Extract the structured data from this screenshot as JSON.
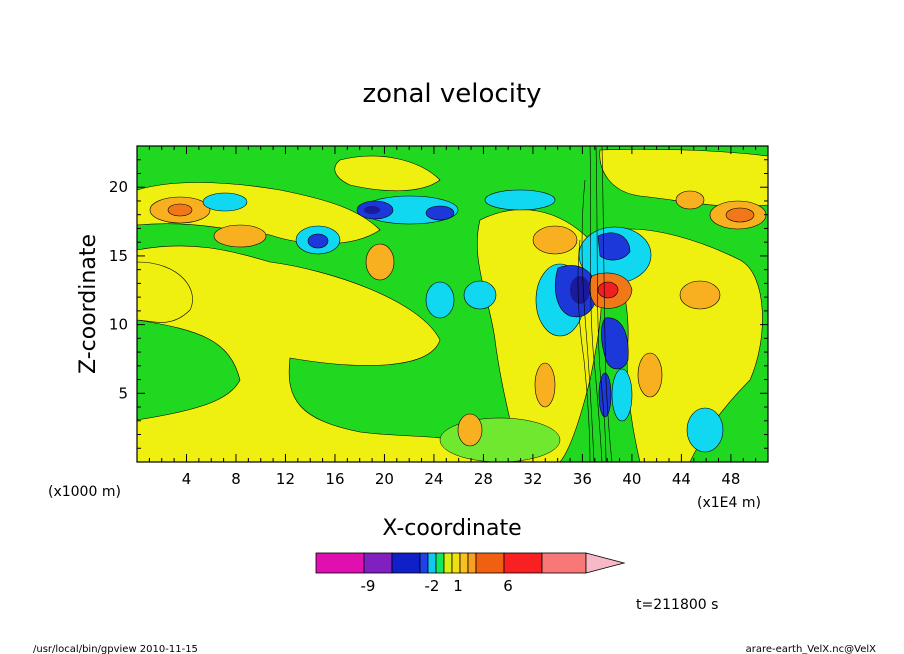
{
  "chart_data": {
    "type": "heatmap",
    "title": "zonal velocity",
    "xlabel": "X-coordinate",
    "ylabel": "Z-coordinate",
    "x_unit": "(x1E4 m)",
    "y_unit": "(x1000 m)",
    "xlim": [
      0,
      51
    ],
    "ylim": [
      0,
      23
    ],
    "x_ticks": [
      4,
      8,
      12,
      16,
      20,
      24,
      28,
      32,
      36,
      40,
      44,
      48
    ],
    "y_ticks": [
      5,
      10,
      15,
      20
    ],
    "colorbar": {
      "colors": [
        "#e010b0",
        "#8020c0",
        "#1020c8",
        "#2040e8",
        "#10c8f0",
        "#10e860",
        "#d8f010",
        "#f0e010",
        "#f8c020",
        "#f8a020",
        "#f06010",
        "#f82020",
        "#f87878",
        "#f8b8c8"
      ],
      "labels": [
        "-9",
        "-2",
        "1",
        "6"
      ]
    },
    "time_label": "t=211800 s"
  },
  "footer": {
    "left": "/usr/local/bin/gpview   2010-11-15",
    "right": "arare-earth_VelX.nc@VelX"
  },
  "colors": {
    "green": "#20d820",
    "yellow": "#f0f010",
    "light_green": "#70e830",
    "cyan": "#10d8f0",
    "blue": "#1c38d8",
    "dark_blue": "#1a1a9a",
    "orange": "#f8b020",
    "dark_orange": "#f07818",
    "red": "#f02020"
  }
}
